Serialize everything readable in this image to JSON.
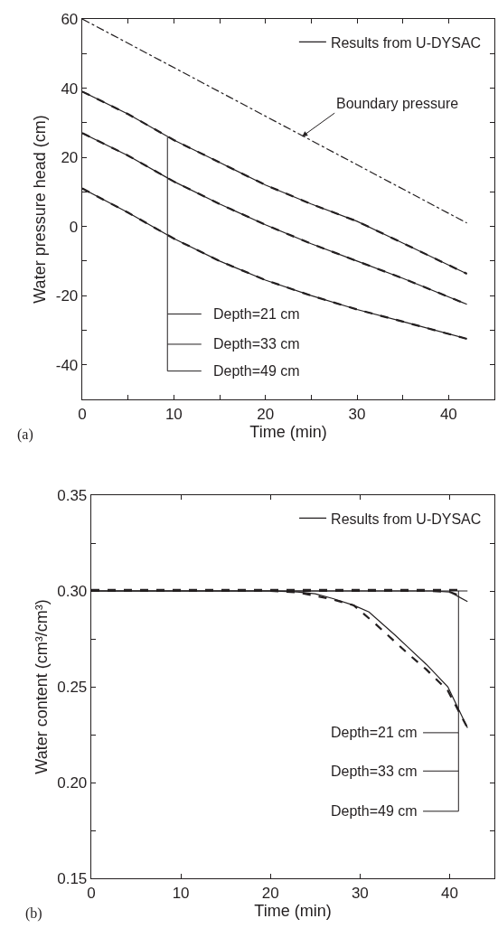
{
  "chart_data": [
    {
      "type": "line",
      "xlabel": "Time (min)",
      "ylabel": "Water pressure head (cm)",
      "xlim": [
        0,
        45
      ],
      "ylim": [
        -50,
        60
      ],
      "xticks": [
        0,
        {
          "value": 5,
          "label": null
        },
        10,
        {
          "value": 15,
          "label": null
        },
        20,
        {
          "value": 25,
          "label": null
        },
        30,
        {
          "value": 35,
          "label": null
        },
        40
      ],
      "yticks": [
        {
          "value": -50,
          "label": null
        },
        -40,
        {
          "value": -30,
          "label": null
        },
        -20,
        {
          "value": -10,
          "label": null
        },
        0,
        {
          "value": 10,
          "label": null
        },
        20,
        {
          "value": 30,
          "label": null
        },
        40,
        {
          "value": 50,
          "label": null
        },
        60
      ],
      "grid": false,
      "legend": "top right",
      "marker": "none",
      "series": [
        {
          "name": "Results from U-DYSAC",
          "color": "#231f20",
          "line_style": "solid",
          "x": [
            0,
            5,
            10,
            15,
            20,
            25,
            30,
            35,
            42
          ],
          "values": [
            39,
            32.5,
            25,
            18.5,
            12,
            6.5,
            1.5,
            -4.8,
            -13.7
          ]
        },
        {
          "color": "#231f20",
          "line_style": "dashed",
          "x": [
            0,
            5,
            10,
            15,
            20,
            25,
            30,
            35,
            42
          ],
          "values": [
            39,
            32.5,
            25,
            18.5,
            12,
            6.5,
            1.5,
            -4.8,
            -13.7
          ]
        },
        {
          "color": "#231f20",
          "line_style": "solid",
          "x": [
            0,
            5,
            10,
            15,
            20,
            25,
            30,
            35,
            42
          ],
          "values": [
            27,
            20.5,
            13,
            6.5,
            0.5,
            -5,
            -10,
            -15,
            -22.5
          ]
        },
        {
          "color": "#231f20",
          "line_style": "dashed",
          "x": [
            0,
            5,
            10,
            15,
            20,
            25,
            30,
            35,
            42
          ],
          "values": [
            27,
            20.5,
            13,
            6.5,
            0.5,
            -5,
            -10,
            -15,
            -22.5
          ]
        },
        {
          "color": "#231f20",
          "line_style": "solid",
          "x": [
            0,
            5,
            10,
            15,
            20,
            25,
            30,
            35,
            42
          ],
          "values": [
            11,
            4,
            -3.5,
            -10,
            -15.5,
            -20,
            -24,
            -27.5,
            -32.5
          ]
        },
        {
          "color": "#231f20",
          "line_style": "dashed",
          "x": [
            0,
            5,
            10,
            15,
            20,
            25,
            30,
            35,
            42
          ],
          "values": [
            11,
            4,
            -3.5,
            -10,
            -15.5,
            -20,
            -24,
            -27.5,
            -32.5
          ]
        },
        {
          "color": "#231f20",
          "line_style": "dashdot",
          "x": [
            0,
            42
          ],
          "values": [
            60,
            1
          ]
        }
      ],
      "annotations": [
        "(a)",
        {
          "text": "Boundary pressure",
          "x": 24,
          "y": 26
        },
        "Depth=21 cm",
        "Depth=33 cm",
        "Depth=49 cm"
      ]
    },
    {
      "type": "line",
      "xlabel": "Time (min)",
      "ylabel": "Water content (cm³/cm³)",
      "xlim": [
        0,
        45
      ],
      "ylim": [
        0.15,
        0.35
      ],
      "xticks": [
        0,
        10,
        20,
        30,
        40
      ],
      "yticks": [
        0.15,
        {
          "value": 0.175,
          "label": null
        },
        "0.20",
        {
          "value": 0.225,
          "label": null
        },
        0.25,
        {
          "value": 0.275,
          "label": null
        },
        "0.30",
        {
          "value": 0.325,
          "label": null
        },
        0.35
      ],
      "grid": false,
      "legend": "top right",
      "marker": "none",
      "series": [
        {
          "name": "Results from U-DYSAC",
          "color": "#231f20",
          "line_style": "solid",
          "x": [
            0,
            20,
            23,
            25,
            27,
            29.3,
            31,
            33.9,
            35.5,
            37.4,
            39.8,
            42
          ],
          "values": [
            0.3,
            0.3,
            0.2995,
            0.2985,
            0.296,
            0.2925,
            0.289,
            0.277,
            0.27,
            0.2617,
            0.25,
            0.2285
          ]
        },
        {
          "color": "#231f20",
          "line_style": "dashed",
          "x": [
            0,
            20,
            23,
            25,
            27,
            29.3,
            31.8,
            35.3,
            37.4,
            39.8,
            42
          ],
          "values": [
            0.3,
            0.3,
            0.2993,
            0.2975,
            0.2955,
            0.2925,
            0.2825,
            0.2675,
            0.259,
            0.248,
            0.2285
          ]
        },
        {
          "color": "#231f20",
          "line_style": "solid",
          "x": [
            0,
            38,
            40,
            42
          ],
          "values": [
            0.3,
            0.3,
            0.2995,
            0.2945
          ]
        },
        {
          "color": "#231f20",
          "line_style": "dashed",
          "x": [
            0,
            38,
            40,
            41.5
          ],
          "values": [
            0.3,
            0.3,
            0.2995,
            0.297
          ]
        },
        {
          "color": "#231f20",
          "line_style": "solid",
          "x": [
            0,
            42
          ],
          "values": [
            0.3,
            0.3
          ]
        },
        {
          "color": "#231f20",
          "line_style": "dashed",
          "x": [
            0,
            41.5
          ],
          "values": [
            0.3005,
            0.3005
          ]
        }
      ],
      "annotations": [
        "(b)",
        "Depth=21 cm",
        "Depth=33 cm",
        "Depth=49 cm"
      ]
    }
  ]
}
